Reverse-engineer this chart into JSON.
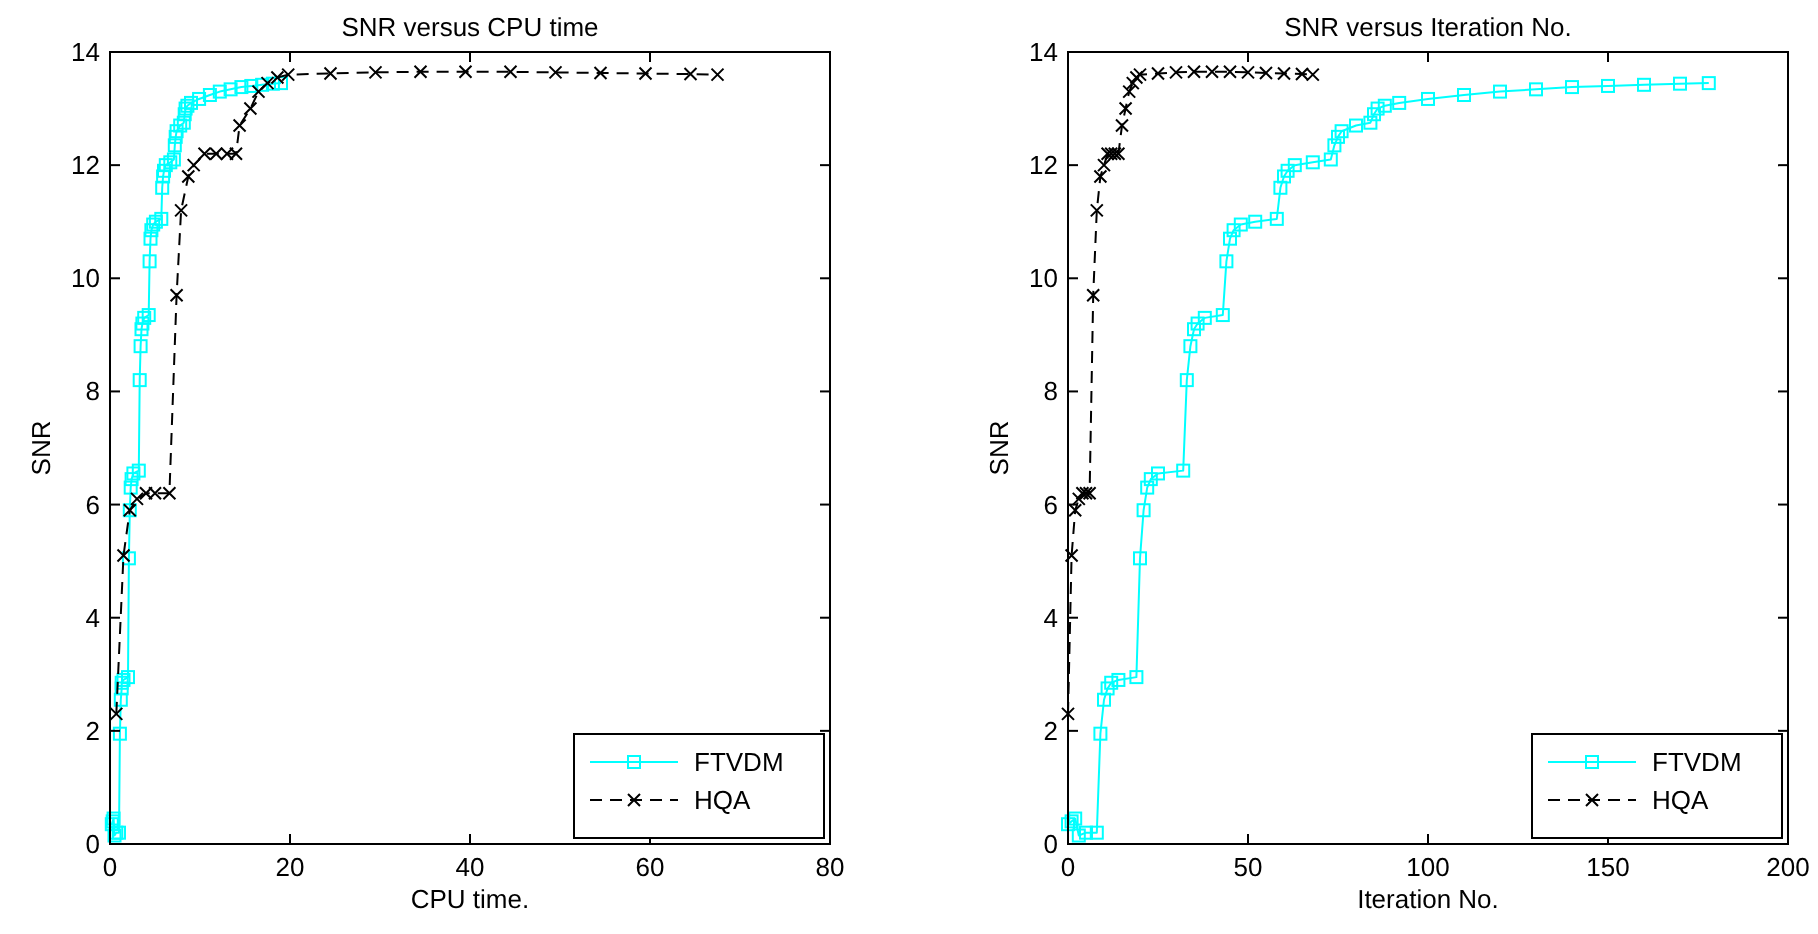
{
  "chart_data": [
    {
      "type": "line",
      "title": "SNR versus CPU time",
      "xlabel": "CPU time.",
      "ylabel": "SNR",
      "xlim": [
        0,
        80
      ],
      "ylim": [
        0,
        14
      ],
      "xticks": [
        0,
        20,
        40,
        60,
        80
      ],
      "yticks": [
        0,
        2,
        4,
        6,
        8,
        10,
        12,
        14
      ],
      "legend": "bottom right",
      "grid": false,
      "series": [
        {
          "name": "FTVDM",
          "color": "#00ffff",
          "marker": "square",
          "line_style": "solid",
          "x": [
            0.2,
            0.3,
            0.4,
            0.5,
            0.7,
            1.0,
            1.1,
            1.2,
            1.3,
            1.3,
            1.5,
            2.0,
            2.1,
            2.2,
            2.3,
            2.4,
            2.6,
            3.2,
            3.3,
            3.4,
            3.5,
            3.6,
            3.8,
            4.3,
            4.4,
            4.5,
            4.6,
            4.8,
            5.1,
            5.7,
            5.8,
            5.9,
            6.0,
            6.2,
            6.7,
            7.1,
            7.2,
            7.3,
            7.4,
            7.8,
            8.2,
            8.3,
            8.4,
            8.6,
            9.0,
            9.9,
            11.1,
            12.2,
            13.4,
            14.6,
            15.7,
            16.9,
            18.1,
            19.0
          ],
          "values": [
            0.35,
            0.4,
            0.45,
            0.15,
            0.2,
            0.2,
            1.95,
            2.55,
            2.75,
            2.85,
            2.9,
            2.95,
            5.05,
            5.9,
            6.3,
            6.45,
            6.55,
            6.6,
            8.2,
            8.8,
            9.1,
            9.2,
            9.3,
            9.35,
            10.3,
            10.7,
            10.85,
            10.95,
            11.0,
            11.05,
            11.6,
            11.8,
            11.9,
            12.0,
            12.05,
            12.1,
            12.35,
            12.5,
            12.6,
            12.7,
            12.75,
            12.9,
            13.0,
            13.05,
            13.1,
            13.17,
            13.24,
            13.3,
            13.34,
            13.38,
            13.4,
            13.42,
            13.44,
            13.45
          ]
        },
        {
          "name": "HQA",
          "color": "#000000",
          "marker": "cross",
          "line_style": "dashed",
          "x": [
            0.7,
            1.5,
            2.2,
            3.0,
            4.0,
            5.0,
            6.6,
            7.4,
            7.9,
            8.7,
            9.3,
            10.5,
            11.8,
            13.0,
            14.0,
            14.4,
            15.6,
            16.5,
            17.5,
            18.6,
            19.8,
            24.5,
            29.5,
            34.5,
            39.5,
            44.5,
            49.5,
            54.5,
            59.5,
            64.5,
            67.5
          ],
          "values": [
            2.3,
            5.1,
            5.9,
            6.1,
            6.2,
            6.2,
            6.2,
            9.7,
            11.2,
            11.8,
            12.0,
            12.2,
            12.2,
            12.2,
            12.2,
            12.7,
            13.0,
            13.3,
            13.45,
            13.55,
            13.6,
            13.62,
            13.64,
            13.65,
            13.65,
            13.65,
            13.64,
            13.63,
            13.62,
            13.61,
            13.6
          ]
        }
      ]
    },
    {
      "type": "line",
      "title": "SNR versus Iteration No.",
      "xlabel": "Iteration No.",
      "ylabel": "SNR",
      "xlim": [
        0,
        200
      ],
      "ylim": [
        0,
        14
      ],
      "xticks": [
        0,
        50,
        100,
        150,
        200
      ],
      "yticks": [
        0,
        2,
        4,
        6,
        8,
        10,
        12,
        14
      ],
      "legend": "bottom right",
      "grid": false,
      "series": [
        {
          "name": "FTVDM",
          "color": "#00ffff",
          "marker": "square",
          "line_style": "solid",
          "x": [
            0,
            1,
            2,
            3,
            5,
            8,
            9,
            10,
            11,
            12,
            14,
            19,
            20,
            21,
            22,
            23,
            25,
            32,
            33,
            34,
            35,
            36,
            38,
            43,
            44,
            45,
            46,
            48,
            52,
            58,
            59,
            60,
            61,
            63,
            68,
            73,
            74,
            75,
            76,
            80,
            84,
            85,
            86,
            88,
            92,
            100,
            110,
            120,
            130,
            140,
            150,
            160,
            170,
            178
          ],
          "values": [
            0.35,
            0.4,
            0.45,
            0.15,
            0.2,
            0.2,
            1.95,
            2.55,
            2.75,
            2.85,
            2.9,
            2.95,
            5.05,
            5.9,
            6.3,
            6.45,
            6.55,
            6.6,
            8.2,
            8.8,
            9.1,
            9.2,
            9.3,
            9.35,
            10.3,
            10.7,
            10.85,
            10.95,
            11.0,
            11.05,
            11.6,
            11.8,
            11.9,
            12.0,
            12.05,
            12.1,
            12.35,
            12.5,
            12.6,
            12.7,
            12.75,
            12.9,
            13.0,
            13.05,
            13.1,
            13.17,
            13.24,
            13.3,
            13.34,
            13.38,
            13.4,
            13.42,
            13.44,
            13.45
          ]
        },
        {
          "name": "HQA",
          "color": "#000000",
          "marker": "cross",
          "line_style": "dashed",
          "x": [
            0,
            1,
            2,
            3,
            4,
            5,
            6,
            7,
            8,
            9,
            10,
            11,
            12,
            13,
            14,
            15,
            16,
            17,
            18,
            19,
            20,
            25,
            30,
            35,
            40,
            45,
            50,
            55,
            60,
            65,
            68
          ],
          "values": [
            2.3,
            5.1,
            5.9,
            6.1,
            6.2,
            6.2,
            6.2,
            9.7,
            11.2,
            11.8,
            12.0,
            12.2,
            12.2,
            12.2,
            12.2,
            12.7,
            13.0,
            13.3,
            13.45,
            13.55,
            13.6,
            13.62,
            13.64,
            13.65,
            13.65,
            13.65,
            13.64,
            13.63,
            13.62,
            13.61,
            13.6
          ]
        }
      ]
    }
  ]
}
